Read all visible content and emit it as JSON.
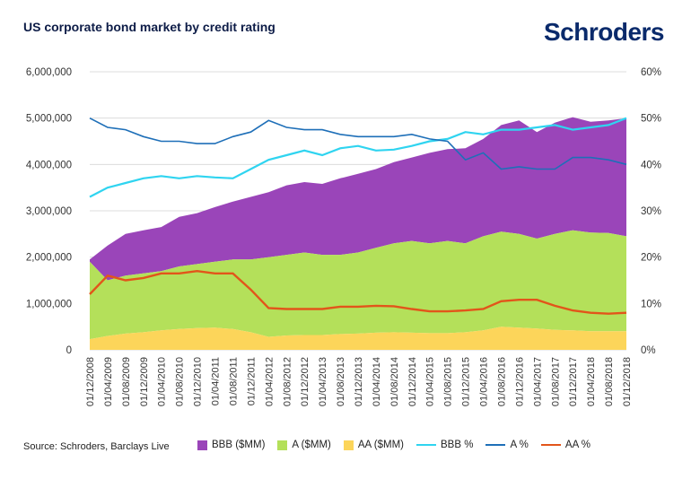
{
  "header": {
    "title": "US corporate bond market by credit rating",
    "logo_text": "Schroders"
  },
  "footer": {
    "source": "Source: Schroders, Barclays Live"
  },
  "colors": {
    "bbb_area": "#9a45b9",
    "a_area": "#b4e05a",
    "aa_area": "#fcd55a",
    "bbb_pct": "#2fd4f0",
    "a_pct": "#1e6fb8",
    "aa_pct": "#e2551a"
  },
  "chart_data": {
    "type": "area",
    "x": [
      "01/12/2008",
      "01/04/2009",
      "01/08/2009",
      "01/12/2009",
      "01/04/2010",
      "01/08/2010",
      "01/12/2010",
      "01/04/2011",
      "01/08/2011",
      "01/12/2011",
      "01/04/2012",
      "01/08/2012",
      "01/12/2012",
      "01/04/2013",
      "01/08/2013",
      "01/12/2013",
      "01/04/2014",
      "01/08/2014",
      "01/12/2014",
      "01/04/2015",
      "01/08/2015",
      "01/12/2015",
      "01/04/2016",
      "01/08/2016",
      "01/12/2016",
      "01/04/2017",
      "01/08/2017",
      "01/12/2017",
      "01/04/2018",
      "01/08/2018",
      "01/12/2018"
    ],
    "y_left": {
      "min": 0,
      "max": 6000000,
      "ticks": [
        "0",
        "1,000,000",
        "2,000,000",
        "3,000,000",
        "4,000,000",
        "5,000,000",
        "6,000,000"
      ]
    },
    "y_right": {
      "min": 0,
      "max": 60,
      "ticks": [
        "0%",
        "10%",
        "20%",
        "30%",
        "40%",
        "50%",
        "60%"
      ]
    },
    "series": [
      {
        "name": "BBB ($MM)",
        "kind": "area-stack-top",
        "values": [
          1950000,
          2250000,
          2500000,
          2580000,
          2650000,
          2870000,
          2950000,
          3080000,
          3200000,
          3300000,
          3400000,
          3550000,
          3620000,
          3580000,
          3700000,
          3800000,
          3900000,
          4050000,
          4150000,
          4250000,
          4330000,
          4350000,
          4550000,
          4850000,
          4950000,
          4700000,
          4900000,
          5020000,
          4920000,
          4950000,
          5000000
        ]
      },
      {
        "name": "A ($MM)",
        "kind": "area-stack-mid",
        "values": [
          1900000,
          1500000,
          1600000,
          1650000,
          1700000,
          1800000,
          1850000,
          1900000,
          1950000,
          1950000,
          2000000,
          2050000,
          2100000,
          2050000,
          2050000,
          2100000,
          2200000,
          2300000,
          2350000,
          2300000,
          2350000,
          2300000,
          2450000,
          2550000,
          2500000,
          2400000,
          2500000,
          2580000,
          2530000,
          2520000,
          2450000
        ]
      },
      {
        "name": "AA ($MM)",
        "kind": "area-stack-bottom",
        "values": [
          230000,
          300000,
          350000,
          380000,
          420000,
          450000,
          470000,
          480000,
          450000,
          380000,
          280000,
          310000,
          320000,
          320000,
          340000,
          350000,
          370000,
          380000,
          370000,
          360000,
          360000,
          380000,
          420000,
          500000,
          480000,
          460000,
          430000,
          420000,
          400000,
          400000,
          400000
        ]
      },
      {
        "name": "BBB %",
        "kind": "line",
        "values": [
          33,
          35,
          36,
          37,
          37.5,
          37,
          37.5,
          37.2,
          37,
          39,
          41,
          42,
          43,
          42,
          43.5,
          44,
          43,
          43.2,
          44,
          45,
          45.5,
          47,
          46.5,
          47.5,
          47.5,
          48,
          48.5,
          47.5,
          48,
          48.5,
          50
        ]
      },
      {
        "name": "A %",
        "kind": "line",
        "values": [
          50,
          48,
          47.5,
          46,
          45,
          45,
          44.5,
          44.5,
          46,
          47,
          49.5,
          48,
          47.5,
          47.5,
          46.5,
          46,
          46,
          46,
          46.5,
          45.5,
          45,
          41,
          42.5,
          39,
          39.5,
          39,
          39,
          41.5,
          41.5,
          41,
          40
        ]
      },
      {
        "name": "AA %",
        "kind": "line",
        "values": [
          12,
          16,
          15,
          15.5,
          16.5,
          16.5,
          17,
          16.5,
          16.5,
          13,
          9,
          8.8,
          8.8,
          8.8,
          9.3,
          9.3,
          9.5,
          9.4,
          8.8,
          8.3,
          8.3,
          8.5,
          8.8,
          10.5,
          10.8,
          10.8,
          9.5,
          8.5,
          8.0,
          7.8,
          8.0
        ]
      }
    ],
    "legend": [
      "BBB ($MM)",
      "A ($MM)",
      "AA ($MM)",
      "BBB %",
      "A %",
      "AA %"
    ],
    "legend_position": "bottom",
    "grid": true
  }
}
